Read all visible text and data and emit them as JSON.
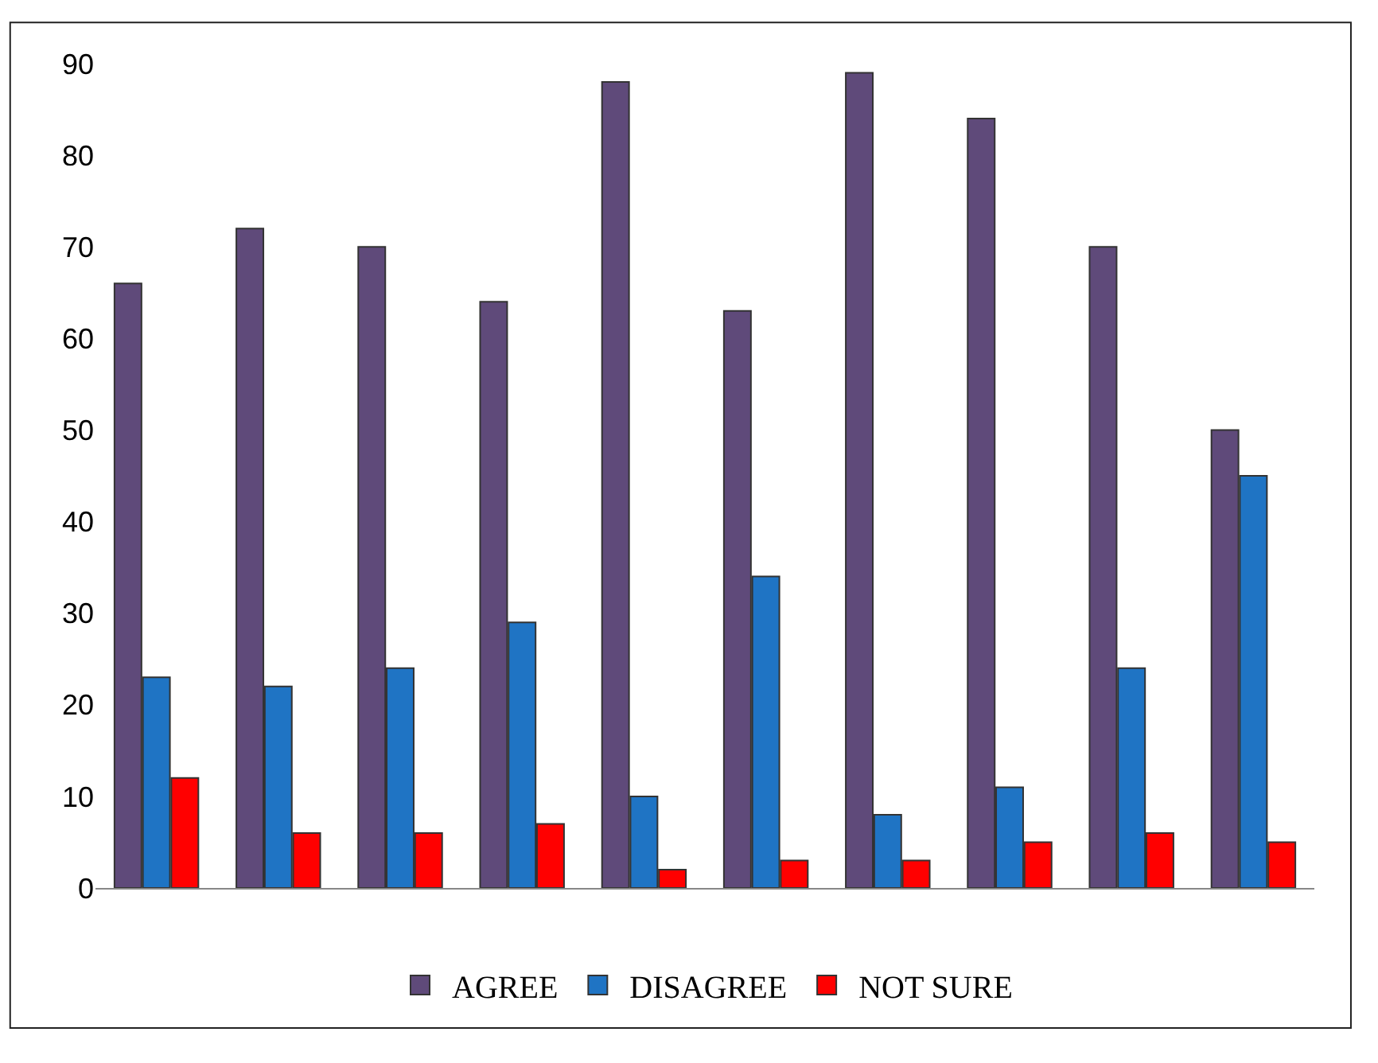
{
  "chart_data": {
    "type": "bar",
    "categories": [
      null,
      null,
      null,
      null,
      null,
      null,
      null,
      null,
      null,
      null
    ],
    "series": [
      {
        "name": "AGREE",
        "color": "#5f4a7a",
        "values": [
          66,
          72,
          70,
          64,
          88,
          63,
          89,
          84,
          70,
          50
        ]
      },
      {
        "name": "DISAGREE",
        "color": "#1f74c4",
        "values": [
          23,
          22,
          24,
          29,
          10,
          34,
          8,
          11,
          24,
          45
        ]
      },
      {
        "name": "NOT SURE",
        "color": "#ff0000",
        "values": [
          12,
          6,
          6,
          7,
          2,
          3,
          3,
          5,
          6,
          5
        ]
      }
    ],
    "ylim": [
      0,
      90
    ],
    "yticks": [
      0,
      10,
      20,
      30,
      40,
      50,
      60,
      70,
      80,
      90
    ],
    "grid": false,
    "legend": "bottom"
  }
}
